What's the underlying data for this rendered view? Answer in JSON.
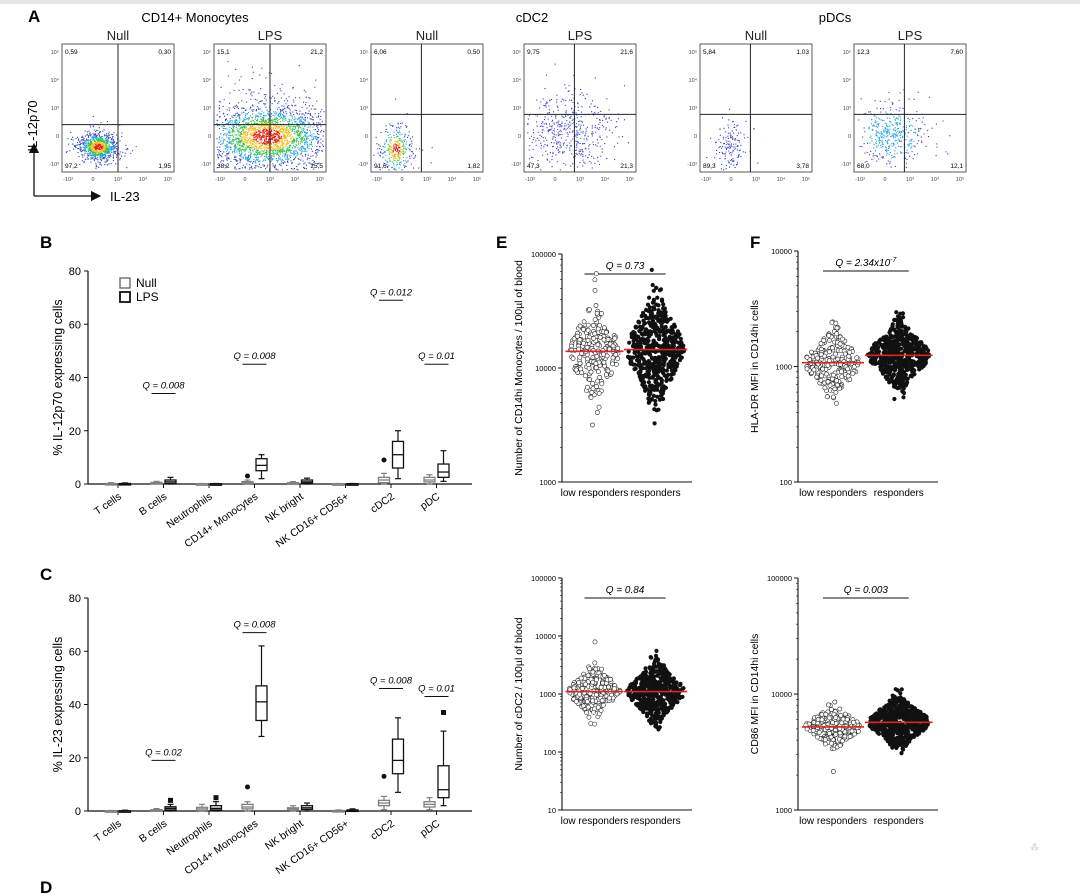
{
  "panel_letters": {
    "a": "A",
    "b": "B",
    "c": "C",
    "d": "D",
    "e": "E",
    "f": "F"
  },
  "flow": {
    "y_label": "IL-12p70",
    "x_label": "IL-23",
    "groups": [
      {
        "title": "CD14+ Monocytes",
        "plots": [
          {
            "condition": "Null",
            "quadrants": {
              "ul": "0,59",
              "ur": "0,30",
              "ll": "97,2",
              "lr": "1,95"
            }
          },
          {
            "condition": "LPS",
            "quadrants": {
              "ul": "15,1",
              "ur": "21,2",
              "ll": "38,2",
              "lr": "25,5"
            }
          }
        ]
      },
      {
        "title": "cDC2",
        "plots": [
          {
            "condition": "Null",
            "quadrants": {
              "ul": "6,06",
              "ur": "0,50",
              "ll": "91,6",
              "lr": "1,82"
            }
          },
          {
            "condition": "LPS",
            "quadrants": {
              "ul": "9,75",
              "ur": "21,6",
              "ll": "47,3",
              "lr": "21,3"
            }
          }
        ]
      },
      {
        "title": "pDCs",
        "plots": [
          {
            "condition": "Null",
            "quadrants": {
              "ul": "5,84",
              "ur": "1,03",
              "ll": "89,3",
              "lr": "3,78"
            }
          },
          {
            "condition": "LPS",
            "quadrants": {
              "ul": "12,3",
              "ur": "7,60",
              "ll": "68,0",
              "lr": "12,1"
            }
          }
        ]
      }
    ]
  },
  "chart_data": [
    {
      "type": "box",
      "panel": "B",
      "ylabel": "% IL-12p70 expressing cells",
      "ylim": [
        0,
        80
      ],
      "yticks": [
        "0",
        "20",
        "40",
        "60",
        "80"
      ],
      "categories": [
        "T cells",
        "B cells",
        "Neutrophils",
        "CD14+ Monocytes",
        "NK bright",
        "NK CD16+ CD56+",
        "cDC2",
        "pDC"
      ],
      "legend": [
        "Null",
        "LPS"
      ],
      "series": [
        {
          "name": "Null",
          "boxes": [
            [
              0,
              0,
              0,
              0.2,
              0.5
            ],
            [
              0,
              0.1,
              0.3,
              0.6,
              1.0
            ],
            [
              0,
              0,
              0,
              0.1,
              0.2
            ],
            [
              0,
              0.2,
              0.5,
              0.9,
              1.5
            ],
            [
              0,
              0.1,
              0.3,
              0.5,
              0.9
            ],
            [
              0,
              0,
              0,
              0.1,
              0.2
            ],
            [
              0,
              0.5,
              1.5,
              2.5,
              4.0
            ],
            [
              0,
              0.8,
              1.5,
              2.5,
              3.5
            ]
          ],
          "outliers": [
            [],
            [],
            [],
            [
              3.0
            ],
            [],
            [],
            [
              9.0
            ],
            []
          ]
        },
        {
          "name": "LPS",
          "boxes": [
            [
              0,
              0,
              0,
              0.2,
              0.4
            ],
            [
              0,
              0.2,
              0.8,
              1.5,
              2.5
            ],
            [
              0,
              0,
              0,
              0.1,
              0.2
            ],
            [
              2,
              5,
              7,
              9.5,
              11
            ],
            [
              0,
              0.3,
              0.8,
              1.5,
              2.2
            ],
            [
              0,
              0,
              0,
              0.1,
              0.2
            ],
            [
              2,
              6,
              11,
              16,
              20
            ],
            [
              1,
              2.5,
              4.5,
              7.5,
              12.5
            ]
          ],
          "outliers": [
            [],
            [],
            [],
            [],
            [],
            [],
            [],
            []
          ]
        }
      ],
      "annotations": [
        {
          "category": "B cells",
          "text": "Q = 0.008",
          "y": 34
        },
        {
          "category": "CD14+ Monocytes",
          "text": "Q = 0.008",
          "y": 45
        },
        {
          "category": "cDC2",
          "text": "Q = 0.012",
          "y": 69
        },
        {
          "category": "pDC",
          "text": "Q = 0.01",
          "y": 45
        }
      ]
    },
    {
      "type": "box",
      "panel": "C",
      "ylabel": "% IL-23 expressing cells",
      "ylim": [
        0,
        80
      ],
      "yticks": [
        "0",
        "20",
        "40",
        "60",
        "80"
      ],
      "categories": [
        "T cells",
        "B cells",
        "Neutrophils",
        "CD14+ Monocytes",
        "NK bright",
        "NK CD16+ CD56+",
        "cDC2",
        "pDC"
      ],
      "series": [
        {
          "name": "Null",
          "boxes": [
            [
              0,
              0,
              0,
              0.1,
              0.2
            ],
            [
              0,
              0.1,
              0.3,
              0.5,
              0.9
            ],
            [
              0,
              0.2,
              0.8,
              1.4,
              2.5
            ],
            [
              0,
              0.8,
              1.5,
              2.5,
              3.5
            ],
            [
              0,
              0.3,
              0.8,
              1.2,
              2.0
            ],
            [
              0,
              0,
              0,
              0.2,
              0.4
            ],
            [
              0.5,
              2,
              3,
              4,
              5.5
            ],
            [
              0.5,
              1.5,
              2.5,
              3.5,
              5
            ]
          ],
          "outliers": [
            [],
            [],
            [],
            [
              9.0
            ],
            [],
            [],
            [
              13
            ],
            []
          ]
        },
        {
          "name": "LPS",
          "boxes": [
            [
              0,
              0,
              0,
              0.1,
              0.3
            ],
            [
              0,
              0.4,
              1,
              1.6,
              2.5
            ],
            [
              0,
              0.4,
              1,
              2,
              3.5
            ],
            [
              28,
              34,
              41,
              47,
              62
            ],
            [
              0,
              0.6,
              1.2,
              2,
              3
            ],
            [
              0,
              0,
              0.2,
              0.4,
              0.8
            ],
            [
              7,
              14,
              19,
              27,
              35
            ],
            [
              2,
              5,
              8,
              17,
              30
            ]
          ],
          "outliers": [
            [],
            [
              4.0
            ],
            [
              5.0
            ],
            [],
            [],
            [],
            [],
            [
              37
            ]
          ]
        }
      ],
      "annotations": [
        {
          "category": "B cells",
          "text": "Q = 0.02",
          "y": 19
        },
        {
          "category": "CD14+ Monocytes",
          "text": "Q = 0.008",
          "y": 67
        },
        {
          "category": "cDC2",
          "text": "Q = 0.008",
          "y": 46
        },
        {
          "category": "pDC",
          "text": "Q = 0.01",
          "y": 43
        }
      ]
    },
    {
      "type": "scatter",
      "panel": "E-top",
      "ylabel": "Number of CD14hi Monocytes / 100µl of blood",
      "yscale": "log",
      "ylim": [
        1000,
        100000
      ],
      "yticks": [
        "1000",
        "10000",
        "100000"
      ],
      "categories": [
        "low responders",
        "responders"
      ],
      "center": [
        14000,
        14500
      ],
      "spread": [
        0.19,
        0.22
      ],
      "q_label": "Q = 0.73"
    },
    {
      "type": "scatter",
      "panel": "F-top",
      "ylabel": "HLA-DR MFI in CD14hi cells",
      "yscale": "log",
      "ylim": [
        100,
        10000
      ],
      "yticks": [
        "100",
        "1000",
        "10000"
      ],
      "categories": [
        "low responders",
        "responders"
      ],
      "center": [
        1080,
        1250
      ],
      "spread": [
        0.13,
        0.13
      ],
      "q_label": "Q = 2.34x10",
      "q_exp": "-7"
    },
    {
      "type": "scatter",
      "panel": "E-bottom",
      "ylabel": "Number of cDC2 / 100µl of blood",
      "yscale": "log",
      "ylim": [
        10,
        100000
      ],
      "yticks": [
        "10",
        "100",
        "1000",
        "10000",
        "100000"
      ],
      "categories": [
        "low responders",
        "responders"
      ],
      "center": [
        1100,
        1100
      ],
      "spread": [
        0.2,
        0.24
      ],
      "q_label": "Q = 0.84"
    },
    {
      "type": "scatter",
      "panel": "F-bottom",
      "ylabel": "CD86 MFI in CD14hi cells",
      "yscale": "log",
      "ylim": [
        1000,
        100000
      ],
      "yticks": [
        "1000",
        "10000",
        "100000"
      ],
      "categories": [
        "low responders",
        "responders"
      ],
      "center": [
        5200,
        5700
      ],
      "spread": [
        0.08,
        0.1
      ],
      "q_label": "Q = 0.003"
    }
  ],
  "colors": {
    "median_line": "#e8211e",
    "axis": "#111111",
    "null_box": "#808080",
    "lps_box": "#111111"
  }
}
